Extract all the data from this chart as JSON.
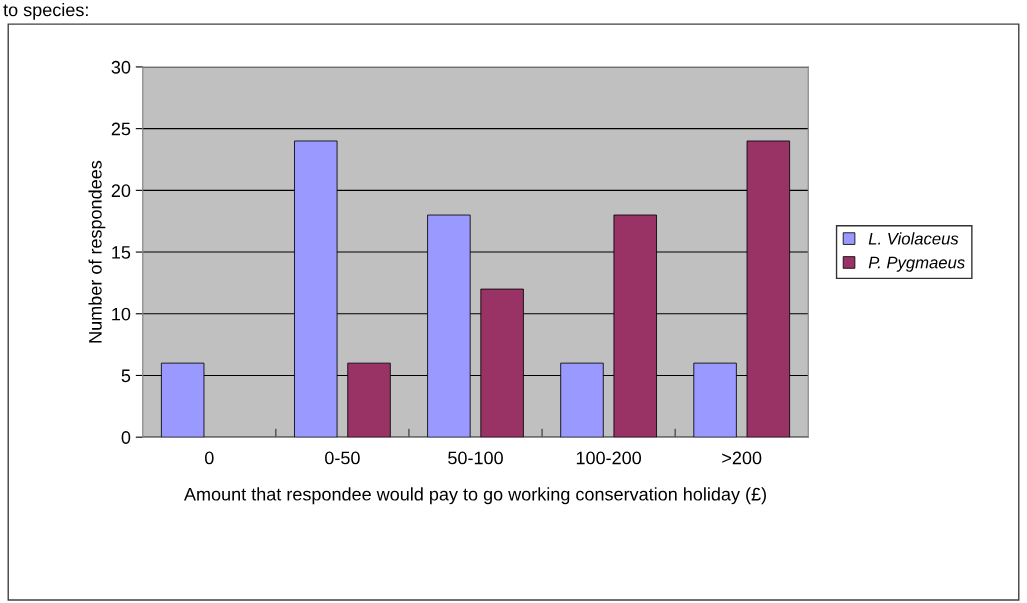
{
  "chart_data": {
    "type": "bar",
    "annotations": [
      "to species:"
    ],
    "categories": [
      "0",
      "0-50",
      "50-100",
      "100-200",
      ">200"
    ],
    "series": [
      {
        "name": "L. Violaceus",
        "color": "#9999ff",
        "values": [
          6,
          24,
          18,
          6,
          6
        ]
      },
      {
        "name": "P. Pygmaeus",
        "color": "#993366",
        "values": [
          null,
          6,
          12,
          18,
          24
        ]
      }
    ],
    "xlabel": "Amount that respondee would pay to go working conservation holiday (£)",
    "ylabel": "Number of respondees",
    "ylim": [
      0,
      30
    ],
    "yticks": [
      0,
      5,
      10,
      15,
      20,
      25,
      30
    ],
    "grid": "y",
    "legend": "right"
  }
}
